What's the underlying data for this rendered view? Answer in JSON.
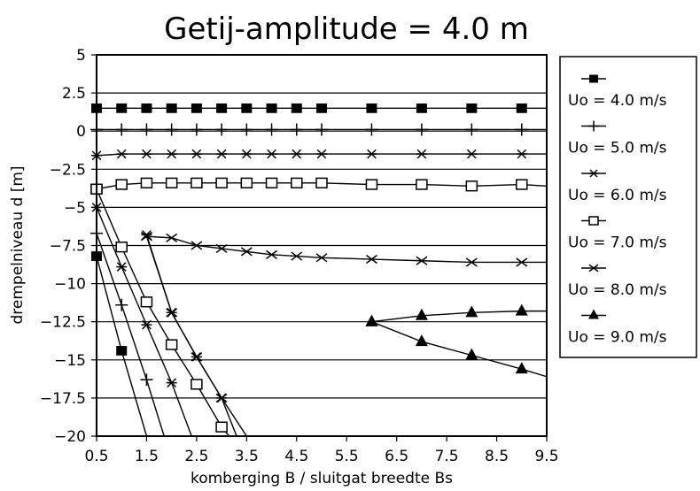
{
  "chart_data": {
    "type": "line",
    "title": "Getij-amplitude = 4.0 m",
    "xlabel": "komberging B / sluitgat breedte Bs",
    "ylabel": "drempelniveau d [m]",
    "xlim": [
      0.5,
      9.5
    ],
    "ylim": [
      -20,
      5
    ],
    "xticks": [
      "0.5",
      "1.5",
      "2.5",
      "3.5",
      "4.5",
      "5.5",
      "6.5",
      "7.5",
      "8.5",
      "9.5"
    ],
    "yticks": [
      "5",
      "2.5",
      "0",
      "-2.5",
      "-5",
      "-7.5",
      "-10",
      "-12.5",
      "-15",
      "-17.5",
      "-20"
    ],
    "grid": "horizontal",
    "legend": "right",
    "series": [
      {
        "name": "Uo = 4.0 m/s",
        "marker": "filled-square",
        "upper": [
          [
            0.5,
            1.5
          ],
          [
            1,
            1.5
          ],
          [
            1.5,
            1.5
          ],
          [
            2,
            1.5
          ],
          [
            2.5,
            1.5
          ],
          [
            3,
            1.5
          ],
          [
            3.5,
            1.5
          ],
          [
            4,
            1.5
          ],
          [
            4.5,
            1.5
          ],
          [
            5,
            1.5
          ],
          [
            6,
            1.5
          ],
          [
            7,
            1.5
          ],
          [
            8,
            1.5
          ],
          [
            9,
            1.5
          ],
          [
            9.5,
            1.5
          ]
        ],
        "lower": [
          [
            0.5,
            -8.2
          ],
          [
            1,
            -14.4
          ],
          [
            1.5,
            -20
          ]
        ]
      },
      {
        "name": "Uo = 5.0 m/s",
        "marker": "plus",
        "upper": [
          [
            0.5,
            0.1
          ],
          [
            1,
            0.1
          ],
          [
            1.5,
            0.1
          ],
          [
            2,
            0.1
          ],
          [
            2.5,
            0.1
          ],
          [
            3,
            0.1
          ],
          [
            3.5,
            0.1
          ],
          [
            4,
            0.1
          ],
          [
            4.5,
            0.1
          ],
          [
            5,
            0.1
          ],
          [
            6,
            0.1
          ],
          [
            7,
            0.1
          ],
          [
            8,
            0.1
          ],
          [
            9,
            0.1
          ],
          [
            9.5,
            0.1
          ]
        ],
        "lower": [
          [
            0.5,
            -6.7
          ],
          [
            1,
            -11.4
          ],
          [
            1.5,
            -16.3
          ],
          [
            1.85,
            -20
          ]
        ]
      },
      {
        "name": "Uo = 6.0 m/s",
        "marker": "asterisk",
        "upper": [
          [
            0.5,
            -1.6
          ],
          [
            1,
            -1.5
          ],
          [
            1.5,
            -1.5
          ],
          [
            2,
            -1.5
          ],
          [
            2.5,
            -1.5
          ],
          [
            3,
            -1.5
          ],
          [
            3.5,
            -1.5
          ],
          [
            4,
            -1.5
          ],
          [
            4.5,
            -1.5
          ],
          [
            5,
            -1.5
          ],
          [
            6,
            -1.5
          ],
          [
            7,
            -1.5
          ],
          [
            8,
            -1.5
          ],
          [
            9,
            -1.5
          ],
          [
            9.5,
            -1.5
          ]
        ],
        "lower": [
          [
            0.5,
            -5
          ],
          [
            1,
            -8.9
          ],
          [
            1.5,
            -12.7
          ],
          [
            2,
            -16.5
          ],
          [
            2.4,
            -20
          ]
        ],
        "branch": [
          [
            1.5,
            -6.8
          ],
          [
            2,
            -11.9
          ],
          [
            2.5,
            -14.8
          ],
          [
            3,
            -17.5
          ],
          [
            3.3,
            -20
          ]
        ]
      },
      {
        "name": "Uo = 7.0 m/s",
        "marker": "open-square",
        "upper": [
          [
            0.5,
            -3.8
          ],
          [
            1,
            -3.5
          ],
          [
            1.5,
            -3.4
          ],
          [
            2,
            -3.4
          ],
          [
            2.5,
            -3.4
          ],
          [
            3,
            -3.4
          ],
          [
            3.5,
            -3.4
          ],
          [
            4,
            -3.4
          ],
          [
            4.5,
            -3.4
          ],
          [
            5,
            -3.4
          ],
          [
            6,
            -3.5
          ],
          [
            7,
            -3.5
          ],
          [
            8,
            -3.6
          ],
          [
            9,
            -3.5
          ],
          [
            9.5,
            -3.6
          ]
        ],
        "lower": [
          [
            0.5,
            -3.8
          ],
          [
            1,
            -7.6
          ],
          [
            1.5,
            -11.2
          ],
          [
            2,
            -14
          ],
          [
            2.5,
            -16.6
          ],
          [
            3,
            -19.4
          ],
          [
            3.15,
            -20
          ]
        ]
      },
      {
        "name": "Uo = 8.0 m/s",
        "marker": "cross",
        "upper": [
          [
            1.5,
            -6.9
          ],
          [
            2,
            -7
          ],
          [
            2.5,
            -7.5
          ],
          [
            3,
            -7.7
          ],
          [
            3.5,
            -7.9
          ],
          [
            4,
            -8.1
          ],
          [
            4.5,
            -8.2
          ],
          [
            5,
            -8.3
          ],
          [
            6,
            -8.4
          ],
          [
            7,
            -8.5
          ],
          [
            8,
            -8.6
          ],
          [
            9,
            -8.6
          ],
          [
            9.5,
            -8.6
          ]
        ],
        "lower": [
          [
            1.5,
            -6.9
          ],
          [
            2,
            -11.9
          ],
          [
            2.5,
            -14.8
          ],
          [
            3,
            -17.5
          ],
          [
            3.5,
            -20
          ]
        ]
      },
      {
        "name": "Uo = 9.0 m/s",
        "marker": "filled-triangle",
        "upper": [
          [
            6,
            -12.5
          ],
          [
            7,
            -12.1
          ],
          [
            8,
            -11.9
          ],
          [
            9,
            -11.8
          ],
          [
            9.5,
            -11.8
          ]
        ],
        "lower": [
          [
            6,
            -12.5
          ],
          [
            7,
            -13.8
          ],
          [
            8,
            -14.7
          ],
          [
            9,
            -15.6
          ],
          [
            9.5,
            -16.1
          ]
        ]
      }
    ]
  }
}
